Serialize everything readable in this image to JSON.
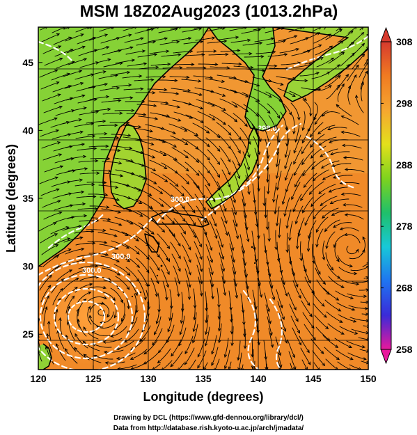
{
  "chart_data": {
    "type": "heatmap",
    "title": "MSM 18Z02Aug2023 (1013.2hPa)",
    "xlabel": "Longitude (degrees)",
    "ylabel": "Latitude  (degrees)",
    "xlim": [
      120,
      150
    ],
    "ylim": [
      22.4,
      47.6
    ],
    "x_ticks": [
      "120",
      "125",
      "130",
      "135",
      "140",
      "145",
      "150"
    ],
    "y_ticks": [
      "25",
      "30",
      "35",
      "40",
      "45"
    ],
    "grid": true,
    "colorbar": {
      "range": [
        258,
        308
      ],
      "ticks": [
        "308",
        "298",
        "288",
        "278",
        "268",
        "258"
      ],
      "colors": [
        "#e8189c",
        "#3a2bd8",
        "#1f74f0",
        "#18c8d8",
        "#1fc06a",
        "#7ed31e",
        "#e3e01c",
        "#f6a630",
        "#f07b22",
        "#d63a2e"
      ]
    },
    "contour_labels": [
      "300.0",
      "300.0",
      "300.0",
      "298.0"
    ],
    "cyclone_centers": [
      {
        "lon": 125.7,
        "lat": 26.6,
        "type": "typhoon"
      },
      {
        "lon": 148.3,
        "lat": 31.3,
        "type": "anticyclonic"
      }
    ]
  },
  "footer": {
    "line1": "Drawing by DCL (https://www.gfd-dennou.org/library/dcl/)",
    "line2": "Data from http://database.rish.kyoto-u.ac.jp/arch/jmadata/"
  }
}
